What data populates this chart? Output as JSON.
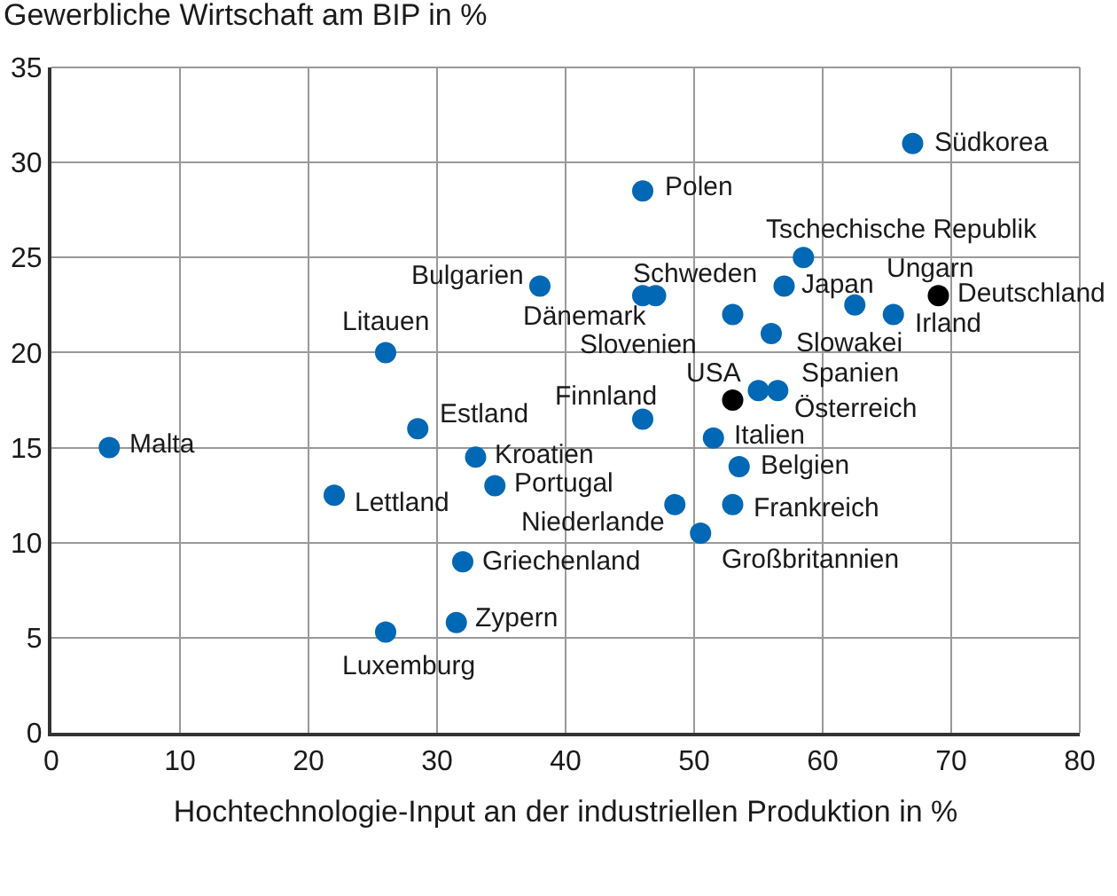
{
  "chart_data": {
    "type": "scatter",
    "ylabel": "Gewerbliche Wirtschaft am BIP in %",
    "xlabel": "Hochtechnologie-Input an der industriellen Produktion in %",
    "xlim": [
      0,
      80
    ],
    "xticks": [
      0,
      10,
      20,
      30,
      40,
      50,
      60,
      70,
      80
    ],
    "ylim": [
      0,
      35
    ],
    "yticks": [
      0,
      5,
      10,
      15,
      20,
      25,
      30,
      35
    ],
    "grid": true,
    "marker": "circle",
    "series": [
      {
        "color": "#0068b4",
        "x": [
          67,
          46,
          58.5,
          38,
          47,
          46,
          57,
          62.5,
          65.5,
          53,
          56,
          26,
          46,
          56.5,
          55,
          28.5,
          51.5,
          33,
          53.5,
          34.5,
          22,
          48.5,
          53,
          50.5,
          32,
          31.5,
          4.5,
          26
        ],
        "values": [
          31,
          28.5,
          25,
          23.5,
          23,
          23,
          23.5,
          22.5,
          22,
          22,
          21,
          20,
          16.5,
          18,
          18,
          16,
          15.5,
          14.5,
          14,
          13,
          12.5,
          12,
          12,
          10.5,
          9,
          5.8,
          15,
          5.3
        ]
      },
      {
        "color": "#000000",
        "x": [
          69,
          53
        ],
        "values": [
          23,
          17.5
        ]
      }
    ],
    "annotations": [
      {
        "text": "Südkorea",
        "x": 67,
        "y": 31
      },
      {
        "text": "Polen",
        "x": 46,
        "y": 28.5
      },
      {
        "text": "Tschechische Republik",
        "x": 58.5,
        "y": 25
      },
      {
        "text": "Bulgarien",
        "x": 38,
        "y": 23.5
      },
      {
        "text": "Schweden",
        "x": 47,
        "y": 23
      },
      {
        "text": "Dänemark",
        "x": 46,
        "y": 23
      },
      {
        "text": "Japan",
        "x": 57,
        "y": 23.5
      },
      {
        "text": "Ungarn",
        "x": 62.5,
        "y": 22.5
      },
      {
        "text": "Deutschland",
        "x": 69,
        "y": 23
      },
      {
        "text": "Irland",
        "x": 65.5,
        "y": 22
      },
      {
        "text": "Slovenien",
        "x": 53,
        "y": 22
      },
      {
        "text": "Slowakei",
        "x": 56,
        "y": 21
      },
      {
        "text": "Litauen",
        "x": 26,
        "y": 20
      },
      {
        "text": "Finnland",
        "x": 46,
        "y": 16.5
      },
      {
        "text": "USA",
        "x": 53,
        "y": 17.5
      },
      {
        "text": "Spanien",
        "x": 56.5,
        "y": 18
      },
      {
        "text": "Österreich",
        "x": 55,
        "y": 18
      },
      {
        "text": "Estland",
        "x": 28.5,
        "y": 16
      },
      {
        "text": "Italien",
        "x": 51.5,
        "y": 15.5
      },
      {
        "text": "Kroatien",
        "x": 33,
        "y": 14.5
      },
      {
        "text": "Belgien",
        "x": 53.5,
        "y": 14
      },
      {
        "text": "Portugal",
        "x": 34.5,
        "y": 13
      },
      {
        "text": "Lettland",
        "x": 22,
        "y": 12.5
      },
      {
        "text": "Niederlande",
        "x": 48.5,
        "y": 12
      },
      {
        "text": "Frankreich",
        "x": 53,
        "y": 12
      },
      {
        "text": "Großbritannien",
        "x": 50.5,
        "y": 10.5
      },
      {
        "text": "Griechenland",
        "x": 32,
        "y": 9
      },
      {
        "text": "Zypern",
        "x": 31.5,
        "y": 5.8
      },
      {
        "text": "Malta",
        "x": 4.5,
        "y": 15
      },
      {
        "text": "Luxemburg",
        "x": 26,
        "y": 5.3
      }
    ]
  }
}
